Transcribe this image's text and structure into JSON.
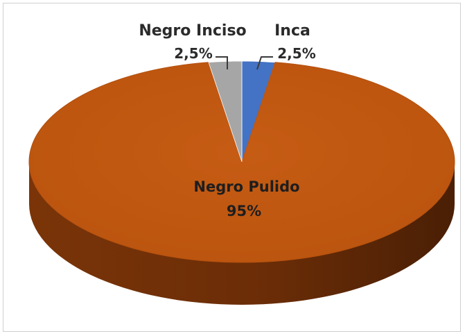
{
  "chart_data": {
    "type": "pie",
    "title": "",
    "categories": [
      "Negro Pulido",
      "Negro Inciso",
      "Inca"
    ],
    "values": [
      95,
      2.5,
      2.5
    ],
    "value_labels": [
      "95%",
      "2,5%",
      "2,5%"
    ],
    "colors": [
      "#c55a11",
      "#a6a6a6",
      "#4472c4"
    ],
    "style": "3d",
    "legend": "none"
  }
}
